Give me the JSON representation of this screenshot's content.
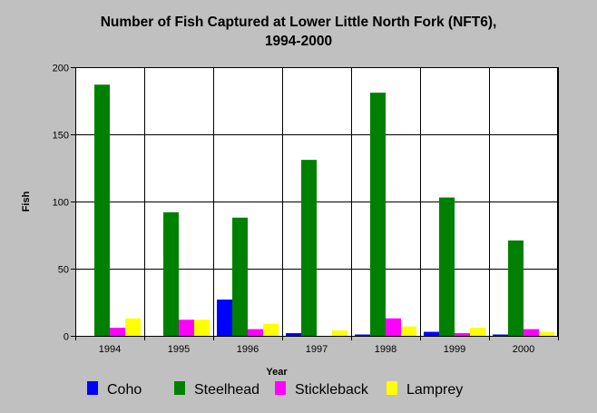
{
  "chart_data": {
    "type": "bar",
    "title_lines": [
      "Number of Fish Captured at Lower Little North Fork (NFT6),",
      "1994-2000"
    ],
    "xlabel": "Year",
    "ylabel": "Fish",
    "categories": [
      "1994",
      "1995",
      "1996",
      "1997",
      "1998",
      "1999",
      "2000"
    ],
    "ylim": [
      0,
      200
    ],
    "yticks": [
      "0",
      "50",
      "100",
      "150",
      "200"
    ],
    "grid": true,
    "legend_position": "bottom",
    "series": [
      {
        "name": "Coho",
        "color": "#0000ff",
        "values": [
          0,
          0,
          27,
          2,
          1,
          3,
          1
        ]
      },
      {
        "name": "Steelhead",
        "color": "#008000",
        "values": [
          187,
          92,
          88,
          131,
          181,
          103,
          71
        ]
      },
      {
        "name": "Stickleback",
        "color": "#ff00ff",
        "values": [
          6,
          12,
          5,
          0,
          13,
          2,
          5
        ]
      },
      {
        "name": "Lamprey",
        "color": "#ffff00",
        "values": [
          13,
          12,
          9,
          4,
          7,
          6,
          3
        ]
      }
    ]
  }
}
